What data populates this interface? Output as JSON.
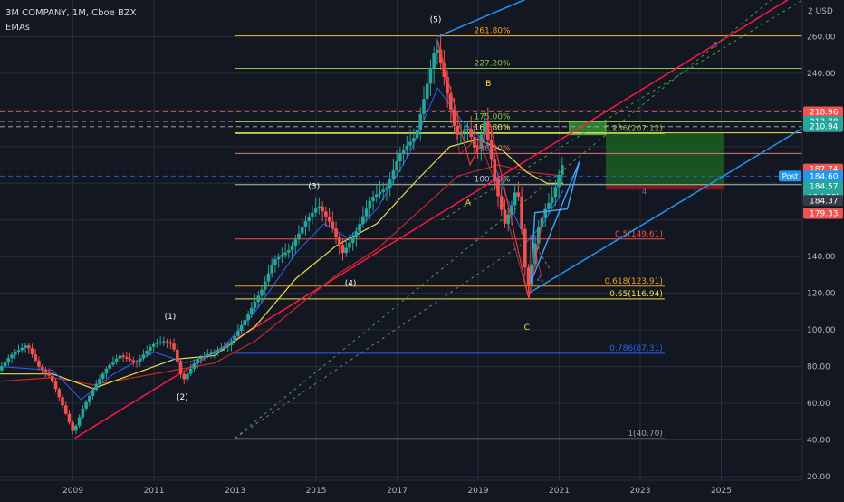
{
  "legend": {
    "symbol_line": "3M COMPANY, 1M, Cboe BZX",
    "indicator": "EMAs"
  },
  "currency": "2 USD",
  "chart_data": {
    "type": "candlestick",
    "xlabel": "",
    "ylabel": "",
    "x_ticks": [
      "2009",
      "2011",
      "2013",
      "2015",
      "2017",
      "2019",
      "2021",
      "2023",
      "2025"
    ],
    "y_ticks": [
      20,
      40,
      60,
      80,
      100,
      120,
      140,
      160,
      180,
      200,
      220,
      240,
      260
    ],
    "y_tick_labels": [
      "20.00",
      "40.00",
      "60.00",
      "80.00",
      "100.00",
      "120.00",
      "140.00",
      "",
      "",
      "",
      "220.00",
      "240.00",
      "260.00"
    ],
    "ylim": [
      18,
      280
    ],
    "xlim": [
      2007.2,
      2027.0
    ],
    "colors": {
      "up": "#26a69a",
      "down": "#ef5350",
      "ema_fast": "#2962ff",
      "ema_mid": "#e8e04a",
      "ema_slow": "#c62828",
      "channel_red": "#ff1744",
      "channel_blue": "#2196f3",
      "profit_zone": "#1b5e20",
      "loss_zone": "#7f1d1d"
    },
    "price_path": [
      [
        2007.2,
        78
      ],
      [
        2007.5,
        86
      ],
      [
        2007.9,
        92
      ],
      [
        2008.2,
        80
      ],
      [
        2008.5,
        74
      ],
      [
        2008.8,
        58
      ],
      [
        2009.05,
        44
      ],
      [
        2009.3,
        58
      ],
      [
        2009.6,
        70
      ],
      [
        2009.9,
        80
      ],
      [
        2010.2,
        86
      ],
      [
        2010.6,
        82
      ],
      [
        2011.0,
        92
      ],
      [
        2011.3,
        94
      ],
      [
        2011.5,
        92
      ],
      [
        2011.75,
        72
      ],
      [
        2012.1,
        84
      ],
      [
        2012.5,
        88
      ],
      [
        2012.9,
        92
      ],
      [
        2013.3,
        106
      ],
      [
        2013.7,
        122
      ],
      [
        2014.0,
        138
      ],
      [
        2014.4,
        144
      ],
      [
        2014.8,
        160
      ],
      [
        2015.1,
        168
      ],
      [
        2015.4,
        158
      ],
      [
        2015.7,
        142
      ],
      [
        2016.0,
        152
      ],
      [
        2016.4,
        172
      ],
      [
        2016.8,
        178
      ],
      [
        2017.1,
        196
      ],
      [
        2017.5,
        206
      ],
      [
        2017.8,
        236
      ],
      [
        2018.0,
        256
      ],
      [
        2018.2,
        238
      ],
      [
        2018.5,
        206
      ],
      [
        2018.8,
        210
      ],
      [
        2019.0,
        196
      ],
      [
        2019.2,
        214
      ],
      [
        2019.5,
        176
      ],
      [
        2019.7,
        158
      ],
      [
        2019.9,
        170
      ],
      [
        2020.0,
        180
      ],
      [
        2020.15,
        148
      ],
      [
        2020.25,
        120
      ],
      [
        2020.5,
        154
      ],
      [
        2020.7,
        166
      ],
      [
        2020.9,
        174
      ],
      [
        2021.1,
        190
      ]
    ],
    "emas": {
      "fast": [
        [
          2007.2,
          80
        ],
        [
          2008.5,
          78
        ],
        [
          2009.2,
          62
        ],
        [
          2010.0,
          76
        ],
        [
          2011.0,
          88
        ],
        [
          2011.8,
          82
        ],
        [
          2012.6,
          88
        ],
        [
          2013.5,
          110
        ],
        [
          2014.5,
          142
        ],
        [
          2015.2,
          158
        ],
        [
          2015.8,
          150
        ],
        [
          2016.5,
          166
        ],
        [
          2017.3,
          196
        ],
        [
          2018.0,
          232
        ],
        [
          2018.6,
          214
        ],
        [
          2019.2,
          202
        ],
        [
          2019.7,
          172
        ],
        [
          2020.2,
          148
        ],
        [
          2020.6,
          158
        ],
        [
          2021.1,
          176
        ]
      ],
      "mid": [
        [
          2007.2,
          76
        ],
        [
          2008.5,
          76
        ],
        [
          2009.5,
          68
        ],
        [
          2010.5,
          76
        ],
        [
          2011.5,
          84
        ],
        [
          2012.5,
          86
        ],
        [
          2013.5,
          102
        ],
        [
          2014.5,
          128
        ],
        [
          2015.5,
          146
        ],
        [
          2016.5,
          158
        ],
        [
          2017.5,
          182
        ],
        [
          2018.3,
          200
        ],
        [
          2019.0,
          204
        ],
        [
          2019.6,
          198
        ],
        [
          2020.2,
          186
        ],
        [
          2020.7,
          180
        ],
        [
          2021.1,
          180
        ]
      ],
      "slow": [
        [
          2007.2,
          72
        ],
        [
          2008.5,
          74
        ],
        [
          2009.5,
          70
        ],
        [
          2010.5,
          74
        ],
        [
          2011.5,
          78
        ],
        [
          2012.5,
          82
        ],
        [
          2013.5,
          94
        ],
        [
          2014.5,
          112
        ],
        [
          2015.5,
          130
        ],
        [
          2016.5,
          144
        ],
        [
          2017.5,
          164
        ],
        [
          2018.5,
          184
        ],
        [
          2019.5,
          190
        ],
        [
          2020.3,
          186
        ],
        [
          2021.1,
          184
        ]
      ]
    },
    "fib_levels": [
      {
        "label": "261.80%",
        "price": 260.5,
        "color": "#f0a020"
      },
      {
        "label": "227.20%",
        "price": 242.7,
        "color": "#8bc34a"
      },
      {
        "label": "175.00%",
        "price": 213.5,
        "color": "#8bc34a"
      },
      {
        "label": "161.80%",
        "price": 207.5,
        "color": "#f5e04a"
      },
      {
        "label": "138.20%",
        "price": 196.3,
        "color": "#e57373"
      },
      {
        "label": "100.00%",
        "price": 179.3,
        "color": "#b0bec5"
      }
    ],
    "retracements": [
      {
        "label": "0.236(207.12)",
        "price": 207.1,
        "color": "#8bc34a"
      },
      {
        "label": "0.5(149.61)",
        "price": 149.6,
        "color": "#ef5350"
      },
      {
        "label": "0.618(123.91)",
        "price": 123.9,
        "color": "#f0a020"
      },
      {
        "label": "0.65(116.94)",
        "price": 116.9,
        "color": "#f5e04a"
      },
      {
        "label": "0.786(87.31)",
        "price": 87.3,
        "color": "#2962ff"
      },
      {
        "label": "1(40.70)",
        "price": 40.7,
        "color": "#9e9e9e"
      }
    ],
    "wave_labels": [
      {
        "text": "(1)",
        "x": 2011.4,
        "y": 106
      },
      {
        "text": "(2)",
        "x": 2011.7,
        "y": 62
      },
      {
        "text": "(3)",
        "x": 2014.95,
        "y": 177
      },
      {
        "text": "(4)",
        "x": 2015.85,
        "y": 124
      },
      {
        "text": "(5)",
        "x": 2017.95,
        "y": 268
      },
      {
        "text": "A",
        "x": 2018.75,
        "y": 168
      },
      {
        "text": "B",
        "x": 2019.25,
        "y": 233
      },
      {
        "text": "C",
        "x": 2020.2,
        "y": 100
      },
      {
        "text": "2",
        "x": 2020.5,
        "y": 127
      },
      {
        "text": "4",
        "x": 2023.1,
        "y": 174
      },
      {
        "text": "5",
        "x": 2024.85,
        "y": 254
      }
    ],
    "price_badges": [
      {
        "text": "218.96",
        "price": 218.96,
        "bg": "#ef5350",
        "fg": "#ffffff"
      },
      {
        "text": "213.78",
        "price": 213.78,
        "bg": "#26a69a",
        "fg": "#ffffff"
      },
      {
        "text": "210.94",
        "price": 210.94,
        "bg": "#26a69a",
        "fg": "#ffffff"
      },
      {
        "text": "187.74",
        "price": 187.74,
        "bg": "#ef5350",
        "fg": "#ffffff"
      },
      {
        "text": "184.60",
        "price": 183.9,
        "bg": "#2196f3",
        "fg": "#ffffff",
        "tag": "Post"
      },
      {
        "text": "184.57",
        "price": 178.4,
        "bg": "#26a69a",
        "fg": "#ffffff",
        "sub": "19d 20h"
      },
      {
        "text": "184.37",
        "price": 170.6,
        "bg": "#363a45",
        "fg": "#ffffff"
      },
      {
        "text": "179.33",
        "price": 163.5,
        "bg": "#ef5350",
        "fg": "#ffffff"
      }
    ]
  }
}
